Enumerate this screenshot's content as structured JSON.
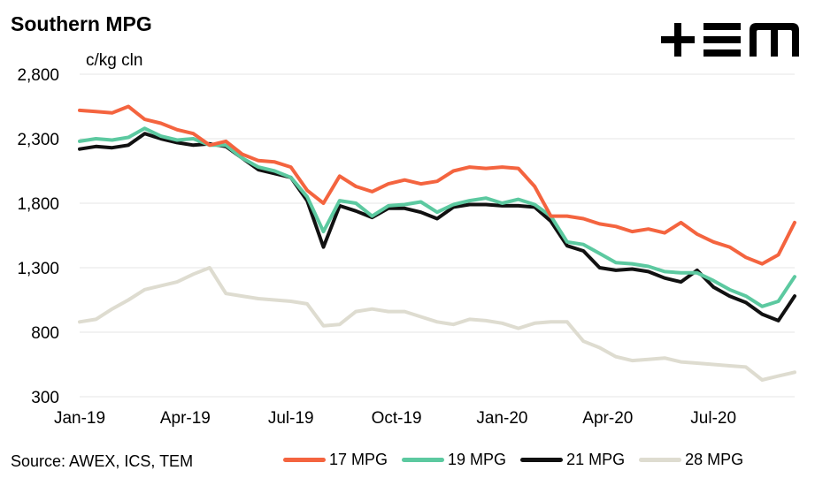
{
  "header": {
    "title": "Southern MPG",
    "unit_label": "c/kg cln"
  },
  "logo": {
    "icon": "tem-logo-icon",
    "text": "TEM"
  },
  "footer": {
    "source": "Source: AWEX, ICS, TEM"
  },
  "chart_data": {
    "type": "line",
    "title": "Southern MPG",
    "xlabel": "",
    "ylabel": "c/kg cln",
    "ylim": [
      300,
      2800
    ],
    "yticks": [
      "2,800",
      "2,300",
      "1,800",
      "1,300",
      "800",
      "300"
    ],
    "ytick_values": [
      2800,
      2300,
      1800,
      1300,
      800,
      300
    ],
    "xtick_labels": [
      "Jan-19",
      "Apr-19",
      "Jul-19",
      "Oct-19",
      "Jan-20",
      "Apr-20",
      "Jul-20"
    ],
    "xtick_positions": [
      0,
      13,
      26,
      39,
      52,
      65,
      78
    ],
    "grid": true,
    "legend_position": "bottom",
    "x": [
      0,
      2,
      4,
      6,
      8,
      10,
      12,
      14,
      16,
      18,
      20,
      22,
      24,
      26,
      28,
      30,
      32,
      34,
      36,
      38,
      40,
      42,
      44,
      46,
      48,
      50,
      52,
      54,
      56,
      58,
      60,
      62,
      64,
      66,
      68,
      70,
      72,
      74,
      76,
      78,
      80,
      82,
      84,
      86,
      88
    ],
    "series": [
      {
        "name": "17 MPG",
        "color": "#f4643f",
        "values": [
          2520,
          2510,
          2500,
          2550,
          2450,
          2420,
          2370,
          2340,
          2250,
          2280,
          2180,
          2130,
          2120,
          2080,
          1900,
          1800,
          2010,
          1930,
          1890,
          1950,
          1980,
          1950,
          1970,
          2050,
          2080,
          2070,
          2080,
          2070,
          1930,
          1700,
          1700,
          1680,
          1640,
          1620,
          1580,
          1600,
          1570,
          1650,
          1560,
          1500,
          1460,
          1380,
          1330,
          1400,
          1650
        ]
      },
      {
        "name": "19 MPG",
        "color": "#5cc9a0",
        "values": [
          2280,
          2300,
          2290,
          2310,
          2380,
          2320,
          2290,
          2300,
          2250,
          2250,
          2150,
          2080,
          2050,
          2000,
          1850,
          1580,
          1820,
          1800,
          1700,
          1780,
          1790,
          1810,
          1730,
          1790,
          1820,
          1840,
          1800,
          1830,
          1790,
          1700,
          1500,
          1480,
          1410,
          1340,
          1330,
          1310,
          1270,
          1260,
          1260,
          1200,
          1130,
          1080,
          1000,
          1040,
          1230
        ]
      },
      {
        "name": "21 MPG",
        "color": "#111111",
        "values": [
          2220,
          2240,
          2230,
          2250,
          2340,
          2300,
          2270,
          2250,
          2260,
          2240,
          2150,
          2060,
          2030,
          2000,
          1820,
          1460,
          1780,
          1740,
          1690,
          1760,
          1760,
          1730,
          1680,
          1770,
          1790,
          1790,
          1780,
          1780,
          1770,
          1660,
          1470,
          1430,
          1300,
          1280,
          1290,
          1270,
          1220,
          1190,
          1280,
          1150,
          1080,
          1030,
          940,
          890,
          1080
        ]
      },
      {
        "name": "28 MPG",
        "color": "#dedcd0",
        "values": [
          880,
          900,
          980,
          1050,
          1130,
          1160,
          1190,
          1250,
          1300,
          1100,
          1080,
          1060,
          1050,
          1040,
          1020,
          850,
          860,
          960,
          980,
          960,
          960,
          920,
          880,
          860,
          900,
          890,
          870,
          830,
          870,
          880,
          880,
          730,
          680,
          610,
          580,
          590,
          600,
          570,
          560,
          550,
          540,
          530,
          430,
          460,
          490
        ]
      }
    ]
  }
}
